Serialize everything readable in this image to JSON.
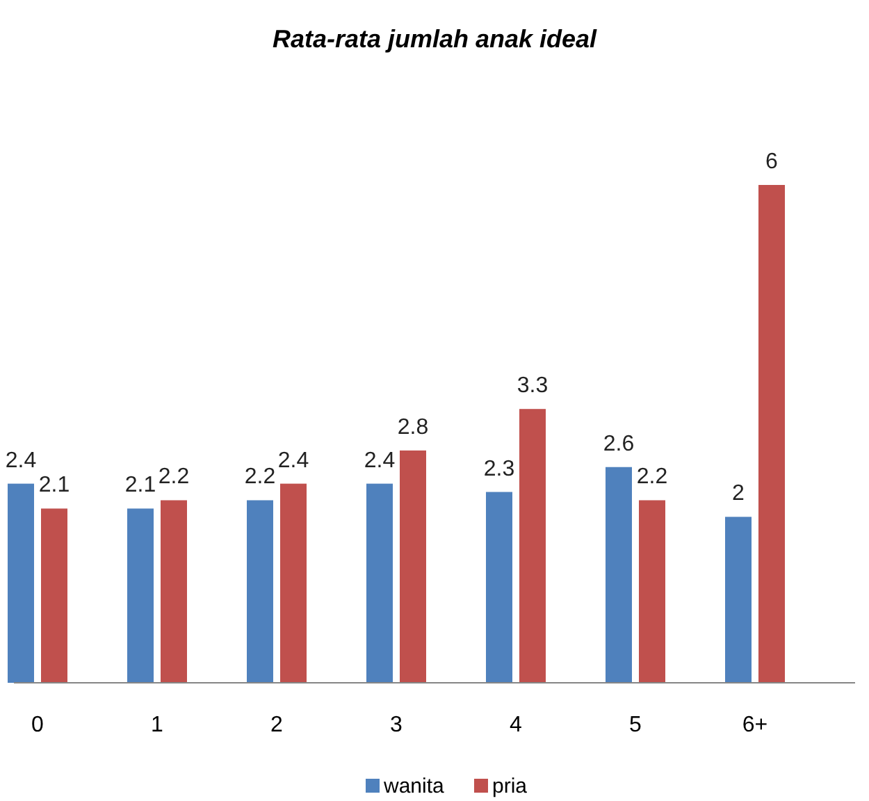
{
  "chart_data": {
    "type": "bar",
    "title": "Rata-rata jumlah anak ideal",
    "categories": [
      "0",
      "1",
      "2",
      "3",
      "4",
      "5",
      "6+"
    ],
    "series": [
      {
        "name": "wanita",
        "color": "#4f81bd",
        "values": [
          2.4,
          2.1,
          2.2,
          2.4,
          2.3,
          2.6,
          2
        ]
      },
      {
        "name": "pria",
        "color": "#c0504d",
        "values": [
          2.1,
          2.2,
          2.4,
          2.8,
          3.3,
          2.2,
          6
        ]
      }
    ],
    "data_labels": true,
    "legend": "bottom"
  }
}
